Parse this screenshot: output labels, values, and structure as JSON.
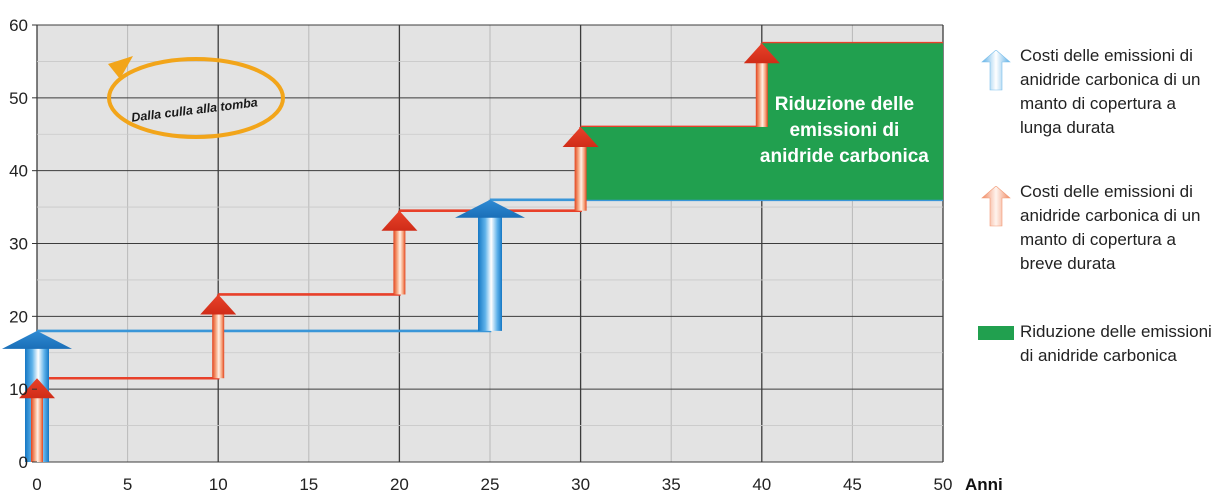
{
  "chart_data": {
    "type": "step-line",
    "xlabel": "Anni",
    "xlim": [
      0,
      50
    ],
    "ylim": [
      0,
      60
    ],
    "x_ticks": [
      0,
      5,
      10,
      15,
      20,
      25,
      30,
      35,
      40,
      45,
      50
    ],
    "y_ticks": [
      0,
      10,
      20,
      30,
      40,
      50,
      60
    ],
    "grid": true,
    "legend_position": "right",
    "series": [
      {
        "name": "Costi delle emissioni di anidride carbonica di un manto di copertura a lunga durata",
        "color": "#3a96d8",
        "steps": [
          {
            "x": 0,
            "y_from": 0,
            "y_to": 18
          },
          {
            "x": 25,
            "y_from": 18,
            "y_to": 36
          }
        ],
        "end_x": 50,
        "end_y": 36
      },
      {
        "name": "Costi delle emissioni di anidride carbonica di un manto di copertura a breve durata",
        "color": "#e8402a",
        "steps": [
          {
            "x": 0,
            "y_from": 0,
            "y_to": 11.5
          },
          {
            "x": 10,
            "y_from": 11.5,
            "y_to": 23
          },
          {
            "x": 20,
            "y_from": 23,
            "y_to": 34.5
          },
          {
            "x": 30,
            "y_from": 34.5,
            "y_to": 46
          },
          {
            "x": 40,
            "y_from": 46,
            "y_to": 57.5
          }
        ],
        "end_x": 50,
        "end_y": 57.5
      }
    ],
    "reduction_area": {
      "name": "Riduzione delle emissioni di anidride carbonica",
      "color": "#21a04f",
      "label": [
        "Riduzione delle",
        "emissioni di",
        "anidride carbonica"
      ]
    },
    "annotation": "Dalla culla alla tomba",
    "annotation_color": "#f2a51a"
  },
  "legend": {
    "items": [
      {
        "label": "Costi delle emissioni di anidride carbonica di un manto di copertura a lunga durata",
        "icon": "blue-arrow-icon"
      },
      {
        "label": "Costi delle emissioni di anidride carbonica di un manto di copertura a breve durata",
        "icon": "red-arrow-icon"
      },
      {
        "label": "Riduzione delle emissioni di anidride carbonica",
        "icon": "green-square-icon"
      }
    ]
  }
}
